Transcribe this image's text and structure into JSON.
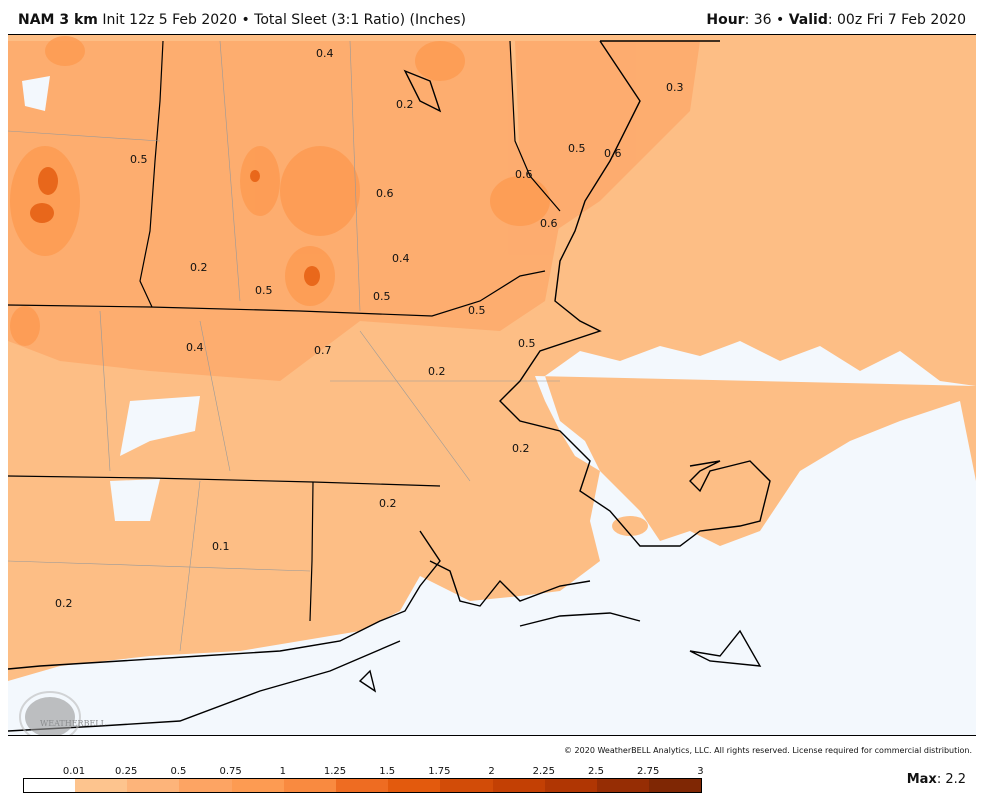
{
  "header": {
    "model": "NAM 3 km",
    "description": "Init 12z 5 Feb 2020 • Total Sleet (3:1 Ratio) (Inches)",
    "hour_label": "Hour",
    "hour_value": ": 36 • ",
    "valid_label": "Valid",
    "valid_value": ": 00z Fri 7 Feb 2020"
  },
  "map": {
    "land_fill": "#fdbe85",
    "ocean_fill": "#f3f8fd",
    "contour_labels": [
      "0.4",
      "0.2",
      "0.3",
      "0.5",
      "0.6",
      "0.6",
      "0.6",
      "0.6",
      "0.2",
      "0.4",
      "0.5",
      "0.5",
      "0.5",
      "0.4",
      "0.7",
      "0.2",
      "0.5",
      "0.2",
      "0.2",
      "0.1",
      "0.2"
    ],
    "watermark": "WeatherBELL"
  },
  "copyright": "© 2020 WeatherBELL Analytics, LLC. All rights reserved. License required for commercial distribution.",
  "legend": {
    "ticks": [
      "0.01",
      "0.25",
      "0.5",
      "0.75",
      "1",
      "1.25",
      "1.5",
      "1.75",
      "2",
      "2.25",
      "2.5",
      "2.75",
      "3"
    ],
    "colors": [
      "#ffffff",
      "#fdc48e",
      "#fdb47a",
      "#fda463",
      "#fd9b52",
      "#f98a40",
      "#ee6c22",
      "#e35a0d",
      "#d24c08",
      "#c34004",
      "#b03603",
      "#962d04",
      "#7f2704"
    ]
  },
  "max": {
    "label": "Max",
    "value": ": 2.2"
  }
}
